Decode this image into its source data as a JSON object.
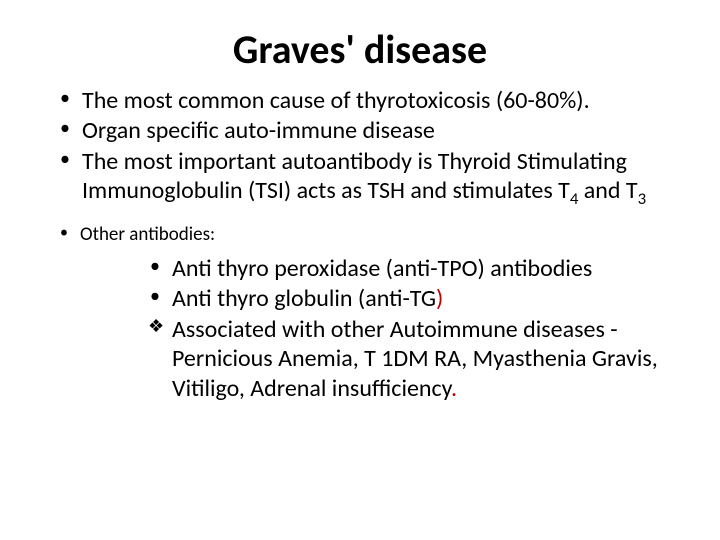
{
  "title": "Graves' disease",
  "main_points": {
    "p1": "The most common cause of thyrotoxicosis (60-80%).",
    "p2": "Organ specific auto-immune disease",
    "p3_a": "The most important autoantibody is  Thyroid Stimulating Immunoglobulin (TSI)  acts as TSH and stimulates T",
    "p3_sub4": "4",
    "p3_b": " and T",
    "p3_sub3": "3"
  },
  "sub_heading": "Other antibodies:",
  "antibodies": {
    "a1": "Anti thyro peroxidase (anti-TPO) antibodies",
    "a2_a": "Anti thyro globulin (anti-TG",
    "a2_paren": ")",
    "assoc_a": "Associated with other Autoimmune diseases - Pernicious Anemia, T 1DM  RA, Myasthenia Gravis, Vitiligo, Adrenal insufficiency",
    "assoc_dot": "."
  },
  "colors": {
    "title": "#000000",
    "body": "#000000",
    "accent": "#c00000",
    "background": "#ffffff"
  },
  "typography": {
    "title_fontsize": 40,
    "body_fontsize": 24,
    "subheading_fontsize": 19,
    "font_family": "Calibri"
  }
}
